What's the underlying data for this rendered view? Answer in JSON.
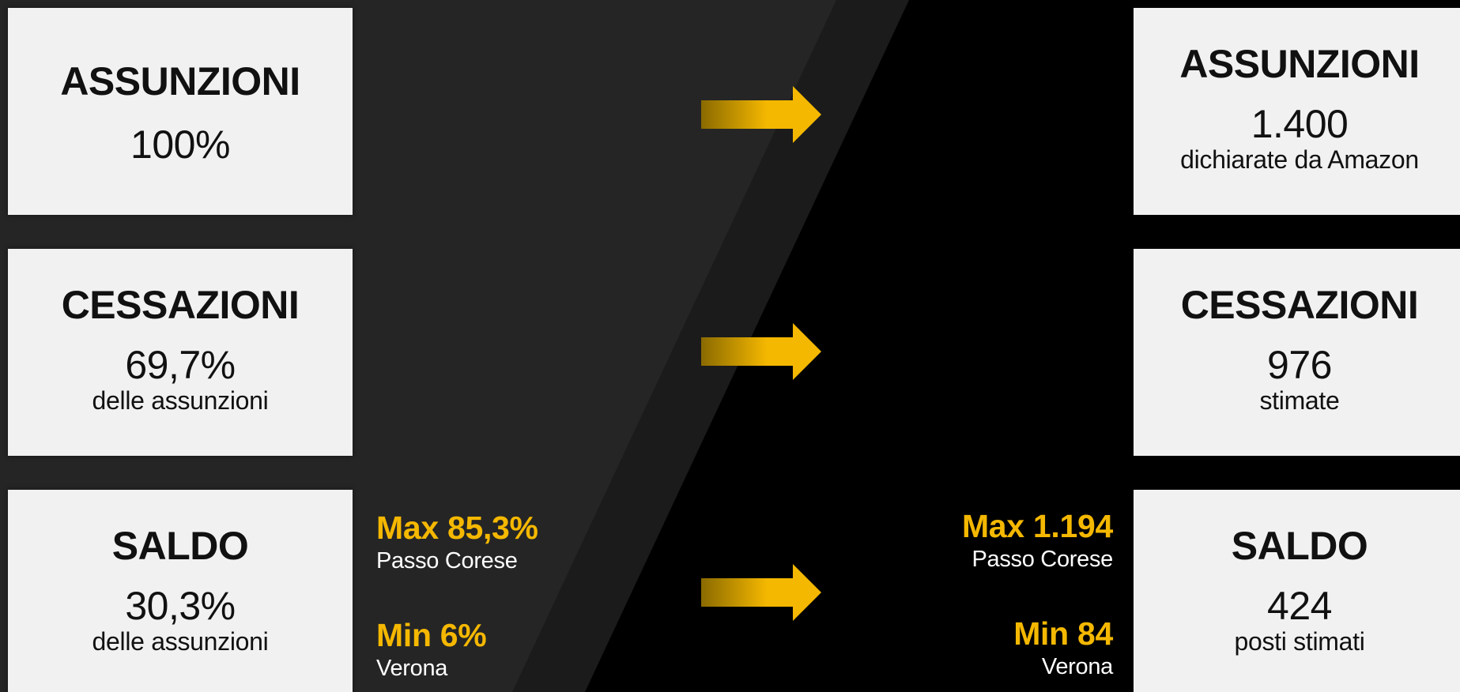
{
  "colors": {
    "background": "#000000",
    "panel_dark": "#222222",
    "panel_mid": "#1b1b1b",
    "card": "#f1f1f1",
    "accent": "#f5b800"
  },
  "left": {
    "assunzioni": {
      "title": "ASSUNZIONI",
      "value": "100%"
    },
    "cessazioni": {
      "title": "CESSAZIONI",
      "value": "69,7%",
      "sub": "delle assunzioni"
    },
    "saldo": {
      "title": "SALDO",
      "value": "30,3%",
      "sub": "delle assunzioni"
    },
    "max": {
      "value": "Max 85,3%",
      "label": "Passo Corese"
    },
    "min": {
      "value": "Min 6%",
      "label": "Verona"
    }
  },
  "right": {
    "assunzioni": {
      "title": "ASSUNZIONI",
      "value": "1.400",
      "sub": "dichiarate da Amazon"
    },
    "cessazioni": {
      "title": "CESSAZIONI",
      "value": "976",
      "sub": "stimate"
    },
    "saldo": {
      "title": "SALDO",
      "value": "424",
      "sub": "posti stimati"
    },
    "max": {
      "value": "Max 1.194",
      "label": "Passo Corese"
    },
    "min": {
      "value": "Min 84",
      "label": "Verona"
    }
  },
  "arrows": [
    {
      "icon": "arrow-right-icon"
    },
    {
      "icon": "arrow-right-icon"
    },
    {
      "icon": "arrow-right-icon"
    }
  ]
}
